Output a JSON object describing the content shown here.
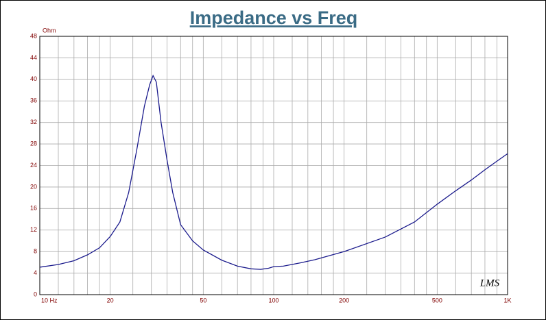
{
  "chart_data": {
    "type": "line",
    "title": "Impedance vs Freq",
    "y_label": "Ohm",
    "logo": "LMS",
    "x": [
      10,
      12,
      14,
      16,
      18,
      20,
      22,
      24,
      26,
      28,
      29.5,
      30.5,
      31.5,
      33,
      35,
      37,
      40,
      45,
      50,
      60,
      70,
      80,
      88,
      95,
      100,
      110,
      130,
      150,
      200,
      300,
      400,
      500,
      600,
      700,
      800,
      900,
      1000
    ],
    "series": [
      {
        "name": "Impedance",
        "color": "#1a1a8c",
        "values": [
          5.1,
          5.6,
          6.3,
          7.4,
          8.7,
          10.8,
          13.5,
          19,
          27,
          35,
          39,
          40.7,
          39.5,
          32,
          25,
          19,
          13,
          10,
          8.3,
          6.4,
          5.3,
          4.8,
          4.7,
          4.9,
          5.2,
          5.3,
          5.9,
          6.5,
          8,
          10.7,
          13.5,
          16.8,
          19.3,
          21.3,
          23.2,
          24.8,
          26.2
        ]
      }
    ],
    "xscale": "log",
    "xlim": [
      10,
      1000
    ],
    "ylim": [
      0,
      48
    ],
    "xticks": [
      {
        "value": 10,
        "label": "10 Hz"
      },
      20,
      50,
      100,
      200,
      500,
      {
        "value": 1000,
        "label": "1K"
      }
    ],
    "xgrid": [
      12,
      14,
      16,
      18,
      25,
      30,
      35,
      40,
      45,
      60,
      70,
      80,
      90,
      120,
      140,
      160,
      180,
      250,
      300,
      350,
      400,
      450,
      600,
      700,
      800,
      900
    ],
    "yticks": [
      0,
      4,
      8,
      12,
      16,
      20,
      24,
      28,
      32,
      36,
      40,
      44,
      48
    ],
    "grid": true
  }
}
